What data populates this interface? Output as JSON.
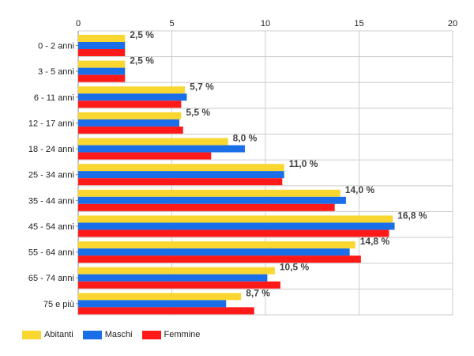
{
  "chart_data": {
    "type": "bar",
    "orientation": "horizontal",
    "categories": [
      "0 - 2 anni",
      "3 - 5 anni",
      "6 - 11 anni",
      "12 - 17 anni",
      "18 - 24 anni",
      "25 - 34 anni",
      "35 - 44 anni",
      "45 - 54 anni",
      "55 - 64 anni",
      "65 - 74 anni",
      "75 e più"
    ],
    "series": [
      {
        "name": "Abitanti",
        "color": "#f9d630",
        "values": [
          2.5,
          2.5,
          5.7,
          5.5,
          8.0,
          11.0,
          14.0,
          16.8,
          14.8,
          10.5,
          8.7
        ]
      },
      {
        "name": "Maschi",
        "color": "#1a6ee8",
        "values": [
          2.5,
          2.5,
          5.8,
          5.4,
          8.9,
          11.0,
          14.3,
          16.9,
          14.5,
          10.1,
          7.9
        ]
      },
      {
        "name": "Femmine",
        "color": "#ff1a1a",
        "values": [
          2.5,
          2.5,
          5.5,
          5.6,
          7.1,
          10.9,
          13.7,
          16.6,
          15.1,
          10.8,
          9.4
        ]
      }
    ],
    "data_labels": [
      "2,5 %",
      "2,5 %",
      "5,7 %",
      "5,5 %",
      "8,0 %",
      "11,0 %",
      "14,0 %",
      "16,8 %",
      "14,8 %",
      "10,5 %",
      "8,7 %"
    ],
    "xlim": [
      0,
      20
    ],
    "x_ticks": [
      "0",
      "5",
      "10",
      "15",
      "20"
    ],
    "grid": true,
    "legend_position": "bottom-left"
  }
}
